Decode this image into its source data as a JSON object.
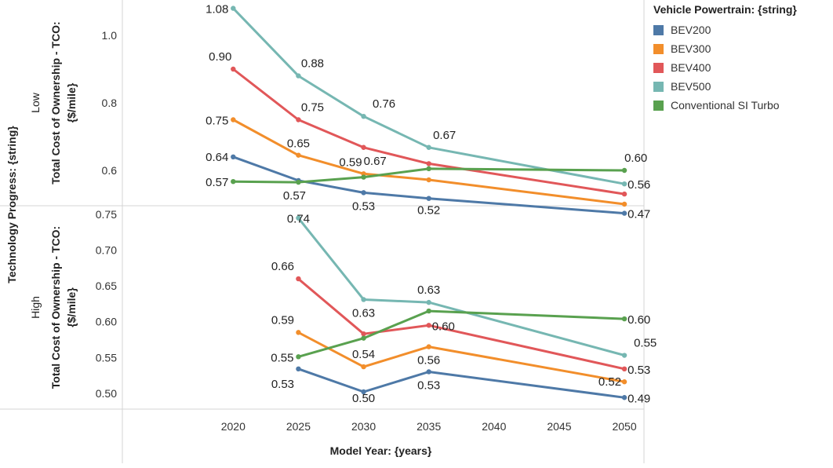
{
  "legend": {
    "title": "Vehicle Powertrain: {string}"
  },
  "chart_data": {
    "type": "line",
    "x_title": "Model Year: {years}",
    "facet_title": "Technology Progress: {string}",
    "y_title_line1": "Total Cost of Ownership - TCO:",
    "y_title_line2": "{$/mile}",
    "x_ticks": [
      2020,
      2025,
      2030,
      2035,
      2040,
      2045,
      2050
    ],
    "x_tick_labels": [
      "2020",
      "2025",
      "2030",
      "2035",
      "2040",
      "2045",
      "2050"
    ],
    "x_range": [
      2011.5,
      2051.5
    ],
    "grid": false,
    "legend_position": "right",
    "panels": [
      {
        "facet": "Low",
        "y_range": [
          0.5,
          1.1
        ],
        "y_ticks": [
          0.6,
          0.8,
          1.0
        ],
        "y_tick_labels": [
          "0.6",
          "0.8",
          "1.0"
        ],
        "series": [
          {
            "name": "BEV200",
            "color": "#4e79a7",
            "x": [
              2020,
              2025,
              2030,
              2035,
              2050
            ],
            "values": [
              0.64,
              0.57,
              0.534,
              0.517,
              0.473
            ],
            "labels": [
              {
                "text": "0.64",
                "x": 2020,
                "y": 0.64,
                "dx": -6,
                "dy": 5,
                "anchor": "end"
              },
              {
                "text": "0.57",
                "x": 2025,
                "y": 0.57,
                "dx": -5,
                "dy": 24,
                "anchor": "middle"
              },
              {
                "text": "0.53",
                "x": 2030,
                "y": 0.534,
                "dx": 0,
                "dy": 22,
                "anchor": "middle"
              },
              {
                "text": "0.52",
                "x": 2035,
                "y": 0.517,
                "dx": 0,
                "dy": 20,
                "anchor": "middle"
              },
              {
                "text": "0.47",
                "x": 2050,
                "y": 0.473,
                "dx": 4,
                "dy": 6,
                "anchor": "start"
              }
            ]
          },
          {
            "name": "BEV300",
            "color": "#f28e2b",
            "x": [
              2020,
              2025,
              2030,
              2035,
              2050
            ],
            "values": [
              0.75,
              0.645,
              0.59,
              0.572,
              0.5
            ],
            "labels": [
              {
                "text": "0.75",
                "x": 2020,
                "y": 0.75,
                "dx": -6,
                "dy": 6,
                "anchor": "end"
              },
              {
                "text": "0.65",
                "x": 2025,
                "y": 0.645,
                "dx": 0,
                "dy": -10,
                "anchor": "middle"
              },
              {
                "text": "0.59",
                "x": 2030,
                "y": 0.59,
                "dx": -2,
                "dy": -10,
                "anchor": "end"
              }
            ]
          },
          {
            "name": "BEV400",
            "color": "#e15759",
            "x": [
              2020,
              2025,
              2030,
              2035,
              2050
            ],
            "values": [
              0.9,
              0.75,
              0.668,
              0.62,
              0.53
            ],
            "labels": [
              {
                "text": "0.90",
                "x": 2020,
                "y": 0.9,
                "dx": -2,
                "dy": -11,
                "anchor": "end"
              },
              {
                "text": "0.75",
                "x": 2025,
                "y": 0.75,
                "dx": 18,
                "dy": -11,
                "anchor": "middle"
              },
              {
                "text": "0.67",
                "x": 2030,
                "y": 0.668,
                "dx": 0,
                "dy": 22,
                "anchor": "start"
              }
            ]
          },
          {
            "name": "BEV500",
            "color": "#76b7b2",
            "x": [
              2020,
              2025,
              2030,
              2035,
              2050
            ],
            "values": [
              1.08,
              0.88,
              0.76,
              0.668,
              0.56
            ],
            "labels": [
              {
                "text": "1.08",
                "x": 2020,
                "y": 1.08,
                "dx": -6,
                "dy": 6,
                "anchor": "end"
              },
              {
                "text": "0.88",
                "x": 2025,
                "y": 0.88,
                "dx": 18,
                "dy": -11,
                "anchor": "middle"
              },
              {
                "text": "0.76",
                "x": 2030,
                "y": 0.76,
                "dx": 26,
                "dy": -11,
                "anchor": "middle"
              },
              {
                "text": "0.67",
                "x": 2035,
                "y": 0.668,
                "dx": 20,
                "dy": -11,
                "anchor": "middle"
              },
              {
                "text": "0.56",
                "x": 2050,
                "y": 0.56,
                "dx": 4,
                "dy": 6,
                "anchor": "start"
              }
            ]
          },
          {
            "name": "Conventional SI Turbo",
            "color": "#59a14f",
            "x": [
              2020,
              2025,
              2030,
              2035,
              2050
            ],
            "values": [
              0.567,
              0.565,
              0.58,
              0.605,
              0.6
            ],
            "labels": [
              {
                "text": "0.57",
                "x": 2020,
                "y": 0.567,
                "dx": -6,
                "dy": 6,
                "anchor": "end"
              },
              {
                "text": "0.60",
                "x": 2050,
                "y": 0.6,
                "dx": 0,
                "dy": -11,
                "anchor": "start"
              }
            ]
          }
        ]
      },
      {
        "facet": "High",
        "y_range": [
          0.48,
          0.76
        ],
        "y_ticks": [
          0.5,
          0.55,
          0.6,
          0.65,
          0.7,
          0.75
        ],
        "y_tick_labels": [
          "0.50",
          "0.55",
          "0.60",
          "0.65",
          "0.70",
          "0.75"
        ],
        "series": [
          {
            "name": "BEV200",
            "color": "#4e79a7",
            "x": [
              2025,
              2030,
              2035,
              2050
            ],
            "values": [
              0.534,
              0.502,
              0.53,
              0.494
            ],
            "labels": [
              {
                "text": "0.53",
                "x": 2025,
                "y": 0.534,
                "dx": -20,
                "dy": 24,
                "anchor": "middle"
              },
              {
                "text": "0.50",
                "x": 2030,
                "y": 0.502,
                "dx": 0,
                "dy": 13,
                "anchor": "middle"
              },
              {
                "text": "0.53",
                "x": 2035,
                "y": 0.53,
                "dx": 0,
                "dy": 22,
                "anchor": "middle"
              },
              {
                "text": "0.49",
                "x": 2050,
                "y": 0.494,
                "dx": 4,
                "dy": 6,
                "anchor": "start"
              }
            ]
          },
          {
            "name": "BEV300",
            "color": "#f28e2b",
            "x": [
              2025,
              2030,
              2035,
              2050
            ],
            "values": [
              0.585,
              0.537,
              0.565,
              0.516
            ],
            "labels": [
              {
                "text": "0.59",
                "x": 2025,
                "y": 0.585,
                "dx": -20,
                "dy": -11,
                "anchor": "middle"
              },
              {
                "text": "0.54",
                "x": 2030,
                "y": 0.537,
                "dx": 0,
                "dy": -11,
                "anchor": "middle"
              },
              {
                "text": "0.56",
                "x": 2035,
                "y": 0.565,
                "dx": 0,
                "dy": 22,
                "anchor": "middle"
              },
              {
                "text": "0.52",
                "x": 2050,
                "y": 0.516,
                "dx": -4,
                "dy": 5,
                "anchor": "end"
              }
            ]
          },
          {
            "name": "BEV400",
            "color": "#e15759",
            "x": [
              2025,
              2030,
              2035,
              2050
            ],
            "values": [
              0.66,
              0.583,
              0.595,
              0.534
            ],
            "labels": [
              {
                "text": "0.66",
                "x": 2025,
                "y": 0.66,
                "dx": -20,
                "dy": -11,
                "anchor": "middle"
              },
              {
                "text": "0.60",
                "x": 2035,
                "y": 0.595,
                "dx": 4,
                "dy": 6,
                "anchor": "start"
              },
              {
                "text": "0.53",
                "x": 2050,
                "y": 0.534,
                "dx": 4,
                "dy": 6,
                "anchor": "start"
              }
            ]
          },
          {
            "name": "BEV500",
            "color": "#76b7b2",
            "x": [
              2025,
              2030,
              2035,
              2050
            ],
            "values": [
              0.745,
              0.631,
              0.627,
              0.553
            ],
            "labels": [
              {
                "text": "0.74",
                "x": 2025,
                "y": 0.745,
                "dx": 0,
                "dy": 6,
                "anchor": "middle"
              },
              {
                "text": "0.63",
                "x": 2030,
                "y": 0.631,
                "dx": 0,
                "dy": 22,
                "anchor": "middle"
              },
              {
                "text": "0.63",
                "x": 2035,
                "y": 0.627,
                "dx": 0,
                "dy": -11,
                "anchor": "middle"
              },
              {
                "text": "0.55",
                "x": 2050,
                "y": 0.553,
                "dx": 12,
                "dy": -11,
                "anchor": "start"
              }
            ]
          },
          {
            "name": "Conventional SI Turbo",
            "color": "#59a14f",
            "x": [
              2025,
              2030,
              2035,
              2050
            ],
            "values": [
              0.551,
              0.577,
              0.615,
              0.604
            ],
            "labels": [
              {
                "text": "0.55",
                "x": 2025,
                "y": 0.551,
                "dx": -6,
                "dy": 6,
                "anchor": "end"
              },
              {
                "text": "0.60",
                "x": 2050,
                "y": 0.604,
                "dx": 4,
                "dy": 6,
                "anchor": "start"
              }
            ]
          }
        ]
      }
    ]
  }
}
